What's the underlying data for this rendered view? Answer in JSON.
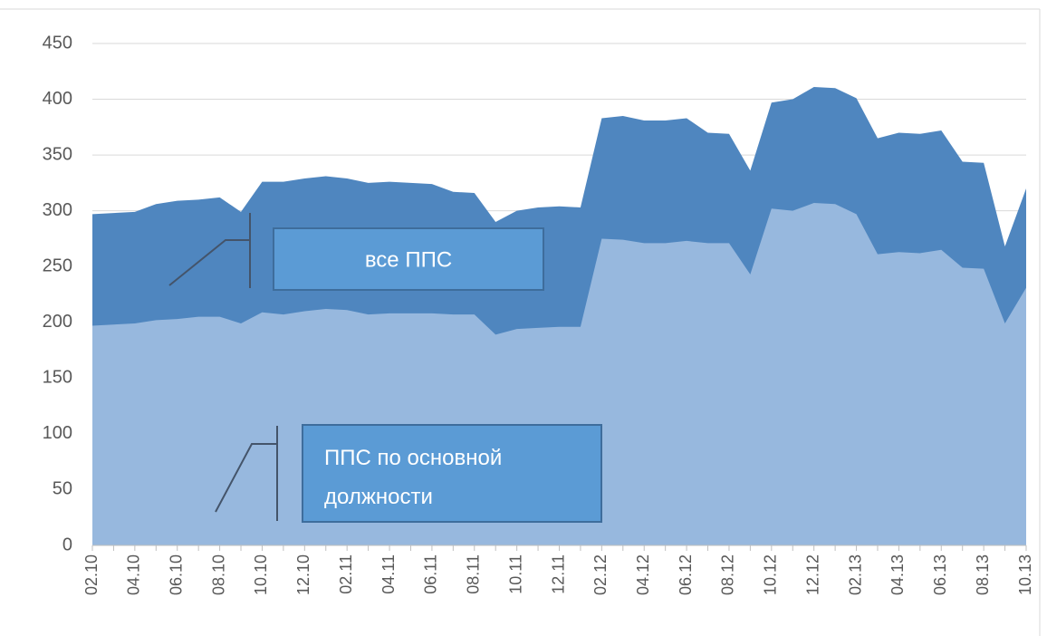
{
  "chart_data": {
    "type": "area",
    "categories": [
      "02.10",
      null,
      "04.10",
      null,
      "06.10",
      null,
      "08.10",
      null,
      "10.10",
      null,
      "12.10",
      null,
      "02.11",
      null,
      "04.11",
      null,
      "06.11",
      null,
      "08.11",
      null,
      "10.11",
      null,
      "12.11",
      null,
      "02.12",
      null,
      "04.12",
      null,
      "06.12",
      null,
      "08.12",
      null,
      "10.12",
      null,
      "12.12",
      null,
      "02.13",
      null,
      "04.13",
      null,
      "06.13",
      null,
      "08.13",
      null,
      "10.13"
    ],
    "series": [
      {
        "name": "все ППС",
        "color": "#4f86bf",
        "values": [
          297,
          298,
          299,
          306,
          309,
          310,
          312,
          299,
          326,
          326,
          329,
          331,
          329,
          325,
          326,
          325,
          324,
          317,
          316,
          290,
          300,
          303,
          304,
          303,
          383,
          385,
          381,
          381,
          383,
          370,
          369,
          336,
          397,
          400,
          411,
          410,
          401,
          365,
          370,
          369,
          372,
          344,
          343,
          268,
          320
        ]
      },
      {
        "name": "ППС по основной должности",
        "color": "#97b8de",
        "values": [
          197,
          198,
          199,
          202,
          203,
          205,
          205,
          199,
          209,
          207,
          210,
          212,
          211,
          207,
          208,
          208,
          208,
          207,
          207,
          189,
          194,
          195,
          196,
          196,
          275,
          274,
          271,
          271,
          273,
          271,
          271,
          243,
          302,
          300,
          307,
          306,
          297,
          261,
          263,
          262,
          265,
          249,
          248,
          199,
          231
        ]
      }
    ],
    "ylim": [
      0,
      450
    ],
    "yticks": [
      0,
      50,
      100,
      150,
      200,
      250,
      300,
      350,
      400,
      450
    ],
    "grid": true
  }
}
